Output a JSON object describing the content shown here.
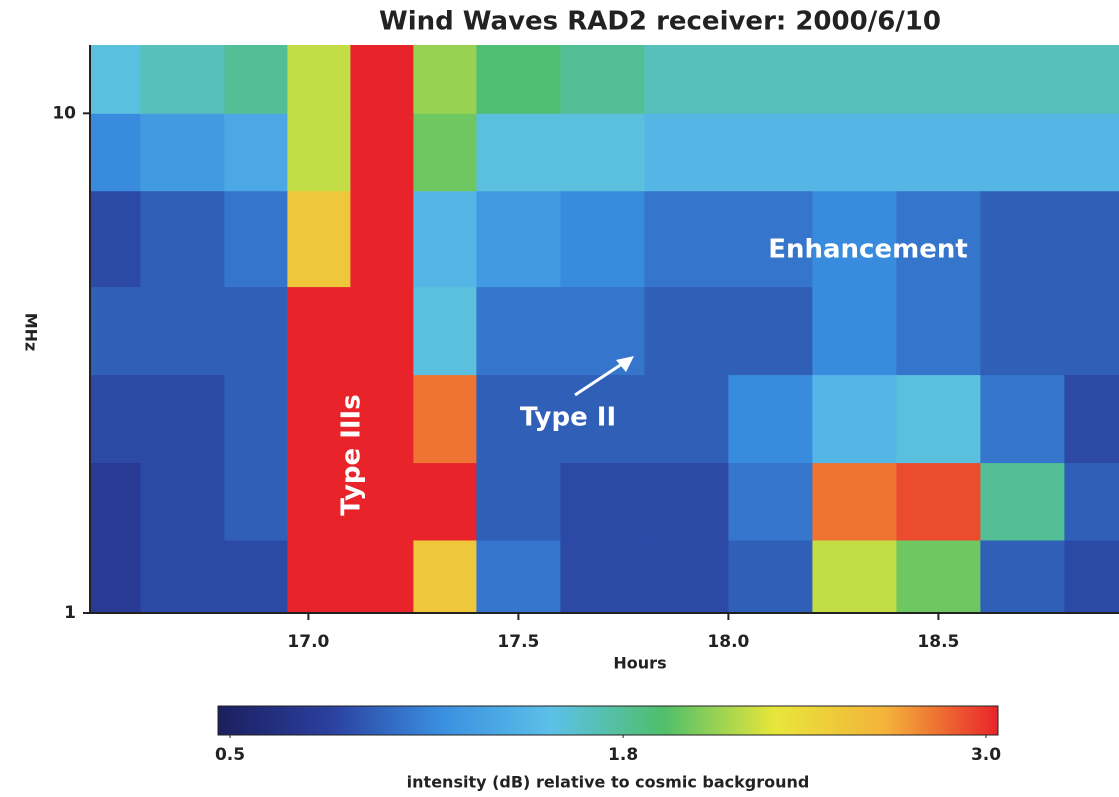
{
  "chart_data": {
    "type": "heatmap",
    "title": "Wind Waves RAD2 receiver: 2000/6/10",
    "x_label": "Hours",
    "y_label": "MHz",
    "xlim": [
      16.48,
      18.93
    ],
    "xticks": [
      {
        "value": 17,
        "label": "17.0"
      },
      17.5,
      {
        "value": 18,
        "label": "18.0"
      },
      18.5
    ],
    "ylim": [
      1,
      13.7
    ],
    "yticks": [
      1,
      10
    ],
    "y_log": true,
    "x_bins": [
      16.48,
      16.6,
      16.8,
      16.95,
      17.1,
      17.25,
      17.4,
      17.6,
      17.8,
      18.0,
      18.2,
      18.4,
      18.6,
      18.8,
      18.93
    ],
    "y_bins": [
      1,
      1.4,
      2,
      3,
      4.5,
      7,
      10,
      13.7
    ],
    "z": [
      [
        0.8,
        0.9,
        0.9,
        3.0,
        3.0,
        2.5,
        1.1,
        0.9,
        0.9,
        1.0,
        2.2,
        2.0,
        1.0,
        0.9
      ],
      [
        0.8,
        0.9,
        1.0,
        3.0,
        3.0,
        3.0,
        1.0,
        0.9,
        0.9,
        1.1,
        2.8,
        2.9,
        1.8,
        1.0
      ],
      [
        0.9,
        0.9,
        1.0,
        3.0,
        3.0,
        2.8,
        1.0,
        1.0,
        1.0,
        1.2,
        1.5,
        1.6,
        1.1,
        0.9
      ],
      [
        1.0,
        1.0,
        1.0,
        3.0,
        3.0,
        1.6,
        1.1,
        1.1,
        1.0,
        1.0,
        1.2,
        1.1,
        1.0,
        1.0
      ],
      [
        0.9,
        1.0,
        1.1,
        2.5,
        3.0,
        1.5,
        1.3,
        1.2,
        1.1,
        1.1,
        1.2,
        1.1,
        1.0,
        1.0
      ],
      [
        1.2,
        1.3,
        1.4,
        2.2,
        3.0,
        2.0,
        1.6,
        1.6,
        1.5,
        1.5,
        1.5,
        1.5,
        1.5,
        1.5
      ],
      [
        1.6,
        1.7,
        1.8,
        2.2,
        3.0,
        2.1,
        1.9,
        1.8,
        1.7,
        1.7,
        1.7,
        1.7,
        1.7,
        1.7
      ]
    ],
    "colorbar": {
      "range": [
        0.5,
        3.0
      ],
      "ticks": [
        {
          "value": 0.5,
          "label": "0.5"
        },
        1.8,
        {
          "value": 3.0,
          "label": "3.0"
        }
      ],
      "colors": [
        "#1b1f5e",
        "#2a3f9e",
        "#3a8fe0",
        "#5cc0e8",
        "#4fbf6a",
        "#e8e63a",
        "#f4b23a",
        "#e8242a"
      ],
      "label": "intensity (dB) relative to cosmic background"
    },
    "annotations": [
      "Type IIIs",
      "Type II",
      "Enhancement"
    ]
  }
}
